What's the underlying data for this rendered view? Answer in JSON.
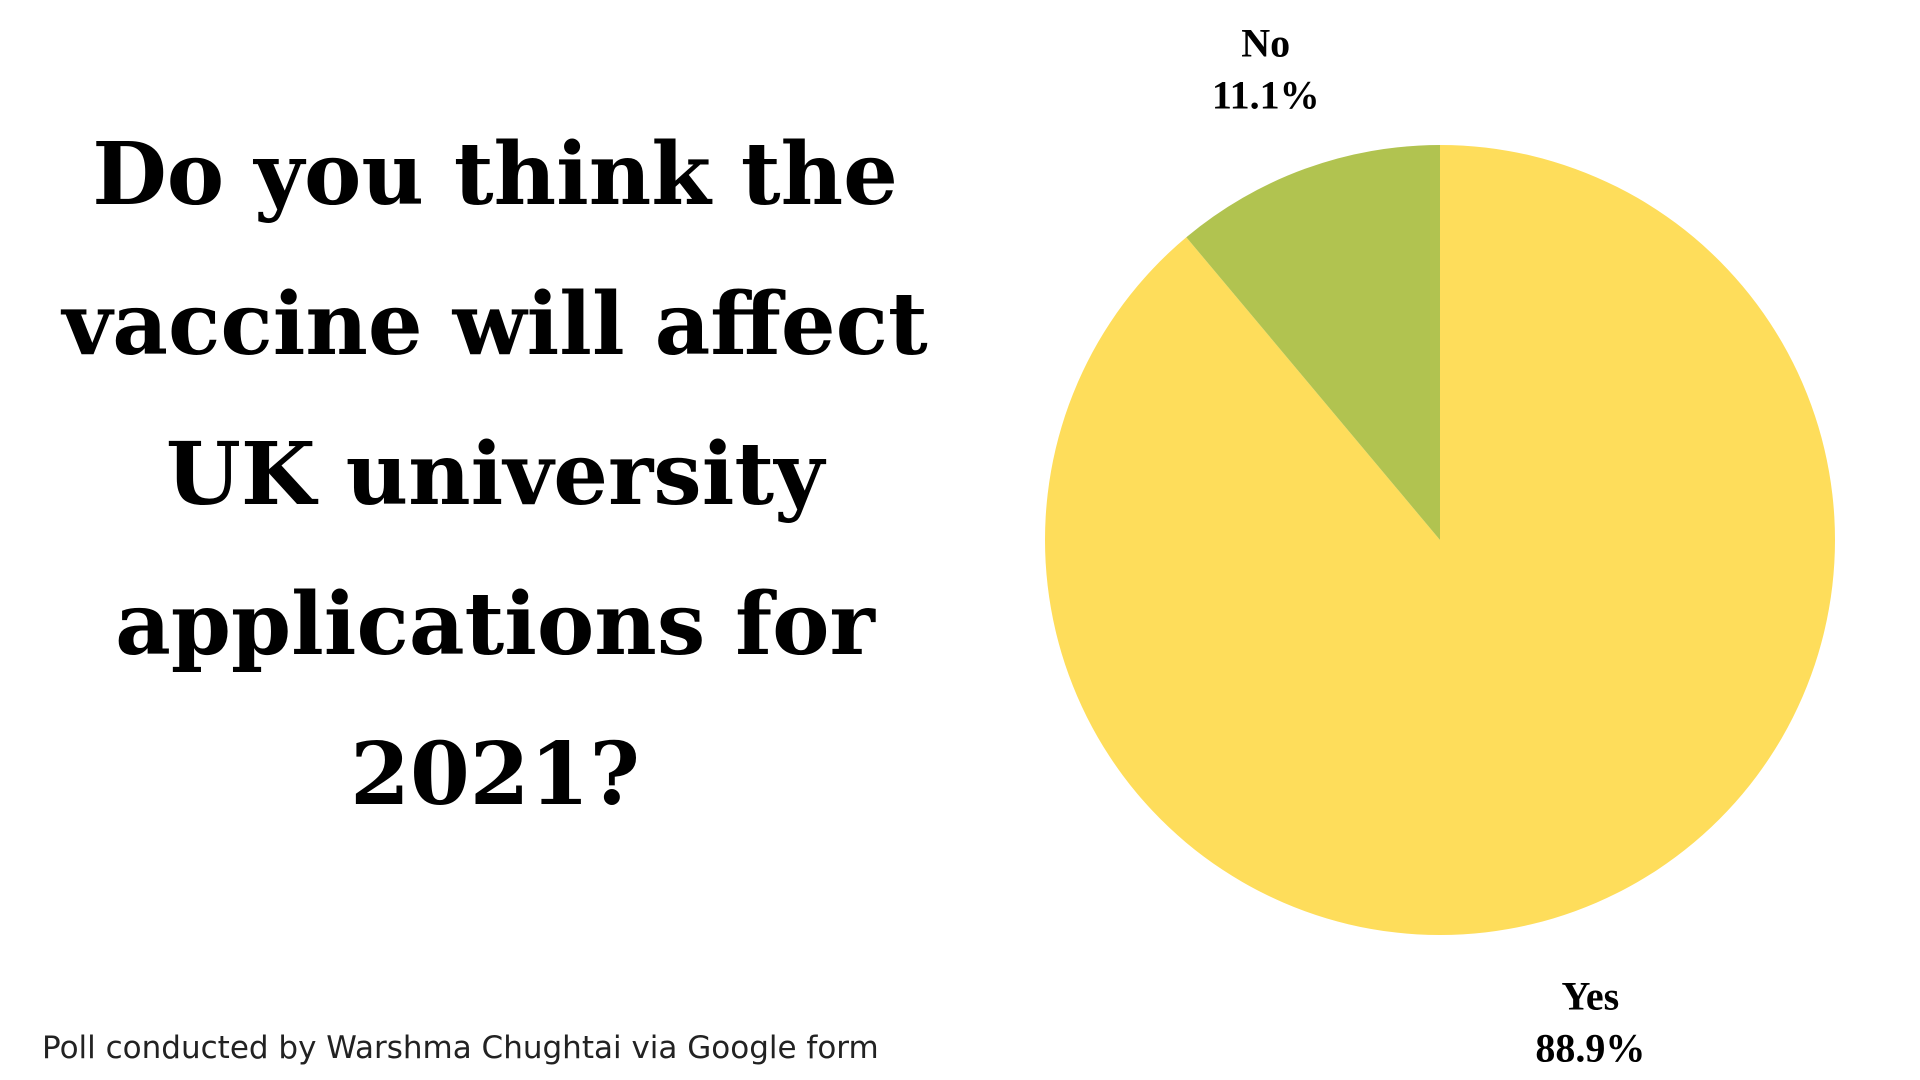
{
  "question": "Do you think the vaccine will affect UK university applications for 2021?",
  "footnote": "Poll conducted by Warshma Chughtai via Google form",
  "chart_data": {
    "type": "pie",
    "title": "Do you think the vaccine will affect UK university applications for 2021?",
    "start_angle_deg": 0,
    "direction": "clockwise",
    "slices": [
      {
        "label": "Yes",
        "value": 88.9,
        "value_label": "88.9%",
        "color": "#FEDD5B"
      },
      {
        "label": "No",
        "value": 11.1,
        "value_label": "11.1%",
        "color": "#B1C350"
      }
    ]
  }
}
